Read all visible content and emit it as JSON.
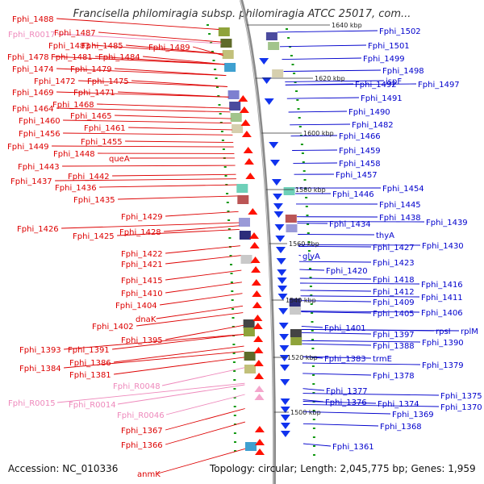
{
  "title": "Francisella philomiragia subsp. philomiragia ATCC 25017, com...",
  "footer": {
    "accession": "Accession: NC_010336",
    "summary": "Topology: circular; Length: 2,045,775 bp; Genes: 1,959"
  },
  "colors": {
    "left_label": "#dd0000",
    "rna_label": "#ee88bb",
    "right_label": "#0000cc",
    "backbone": "#999999",
    "forward_gene": "#ff1100",
    "reverse_gene": "#1133ee",
    "rna_gene": "#f4a6cc",
    "tick": "#119911"
  },
  "kbp_marks": [
    "1640 kbp",
    "1620 kbp",
    "1600 kbp",
    "1580 kbp",
    "1560 kbp",
    "1540 kbp",
    "1520 kbp",
    "1500 kbp"
  ],
  "left_labels": [
    {
      "text": "Fphi_1488",
      "type": "gene"
    },
    {
      "text": "Fphi_R0017",
      "type": "rna"
    },
    {
      "text": "Fphi_1487",
      "type": "gene"
    },
    {
      "text": "Fphi_1489",
      "type": "gene"
    },
    {
      "text": "Fphi_1483",
      "type": "gene"
    },
    {
      "text": "Fphi_1485",
      "type": "gene"
    },
    {
      "text": "Fphi_1478",
      "type": "gene"
    },
    {
      "text": "Fphi_1481",
      "type": "gene"
    },
    {
      "text": "Fphi_1484",
      "type": "gene"
    },
    {
      "text": "Fphi_1474",
      "type": "gene"
    },
    {
      "text": "Fphi_1479",
      "type": "gene"
    },
    {
      "text": "Fphi_1472",
      "type": "gene"
    },
    {
      "text": "Fphi_1475",
      "type": "gene"
    },
    {
      "text": "Fphi_1469",
      "type": "gene"
    },
    {
      "text": "Fphi_1471",
      "type": "gene"
    },
    {
      "text": "Fphi_1464",
      "type": "gene"
    },
    {
      "text": "Fphi_1468",
      "type": "gene"
    },
    {
      "text": "Fphi_1465",
      "type": "gene"
    },
    {
      "text": "Fphi_1460",
      "type": "gene"
    },
    {
      "text": "Fphi_1461",
      "type": "gene"
    },
    {
      "text": "Fphi_1456",
      "type": "gene"
    },
    {
      "text": "Fphi_1455",
      "type": "gene"
    },
    {
      "text": "Fphi_1449",
      "type": "gene"
    },
    {
      "text": "Fphi_1448",
      "type": "gene"
    },
    {
      "text": "queA",
      "type": "gene"
    },
    {
      "text": "Fphi_1443",
      "type": "gene"
    },
    {
      "text": "Fphi_1442",
      "type": "gene"
    },
    {
      "text": "Fphi_1437",
      "type": "gene"
    },
    {
      "text": "Fphi_1436",
      "type": "gene"
    },
    {
      "text": "Fphi_1435",
      "type": "gene"
    },
    {
      "text": "Fphi_1429",
      "type": "gene"
    },
    {
      "text": "Fphi_1426",
      "type": "gene"
    },
    {
      "text": "Fphi_1428",
      "type": "gene"
    },
    {
      "text": "Fphi_1425",
      "type": "gene"
    },
    {
      "text": "Fphi_1422",
      "type": "gene"
    },
    {
      "text": "Fphi_1421",
      "type": "gene"
    },
    {
      "text": "Fphi_1415",
      "type": "gene"
    },
    {
      "text": "Fphi_1410",
      "type": "gene"
    },
    {
      "text": "Fphi_1404",
      "type": "gene"
    },
    {
      "text": "dnaK",
      "type": "gene"
    },
    {
      "text": "Fphi_1402",
      "type": "gene"
    },
    {
      "text": "Fphi_1395",
      "type": "gene"
    },
    {
      "text": "Fphi_1393",
      "type": "gene"
    },
    {
      "text": "Fphi_1391",
      "type": "gene"
    },
    {
      "text": "Fphi_1386",
      "type": "gene"
    },
    {
      "text": "Fphi_1384",
      "type": "gene"
    },
    {
      "text": "Fphi_1381",
      "type": "gene"
    },
    {
      "text": "Fphi_R0048",
      "type": "rna"
    },
    {
      "text": "Fphi_R0015",
      "type": "rna"
    },
    {
      "text": "Fphi_R0014",
      "type": "rna"
    },
    {
      "text": "Fphi_R0046",
      "type": "rna"
    },
    {
      "text": "Fphi_1367",
      "type": "gene"
    },
    {
      "text": "Fphi_1366",
      "type": "gene"
    },
    {
      "text": "anmK",
      "type": "gene"
    }
  ],
  "right_labels": [
    "Fphi_1502",
    "Fphi_1501",
    "Fphi_1499",
    "Fphi_1498",
    "Fphi_1492",
    "ispF",
    "Fphi_1497",
    "Fphi_1491",
    "Fphi_1490",
    "Fphi_1482",
    "Fphi_1466",
    "Fphi_1459",
    "Fphi_1458",
    "Fphi_1457",
    "Fphi_1454",
    "Fphi_1446",
    "Fphi_1445",
    "Fphi_1438",
    "Fphi_1439",
    "Fphi_1434",
    "thyA",
    "Fphi_1427",
    "Fphi_1430",
    "glyA",
    "Fphi_1423",
    "Fphi_1420",
    "Fphi_1418",
    "Fphi_1416",
    "Fphi_1412",
    "Fphi_1411",
    "Fphi_1409",
    "Fphi_1405",
    "Fphi_1406",
    "Fphi_1401",
    "rpsI",
    "rplM",
    "Fphi_1397",
    "Fphi_1388",
    "Fphi_1390",
    "Fphi_1383",
    "trmE",
    "Fphi_1379",
    "Fphi_1378",
    "Fphi_1377",
    "Fphi_1375",
    "Fphi_1376",
    "Fphi_1374",
    "Fphi_1370",
    "Fphi_1369",
    "Fphi_1368",
    "Fphi_1361"
  ]
}
